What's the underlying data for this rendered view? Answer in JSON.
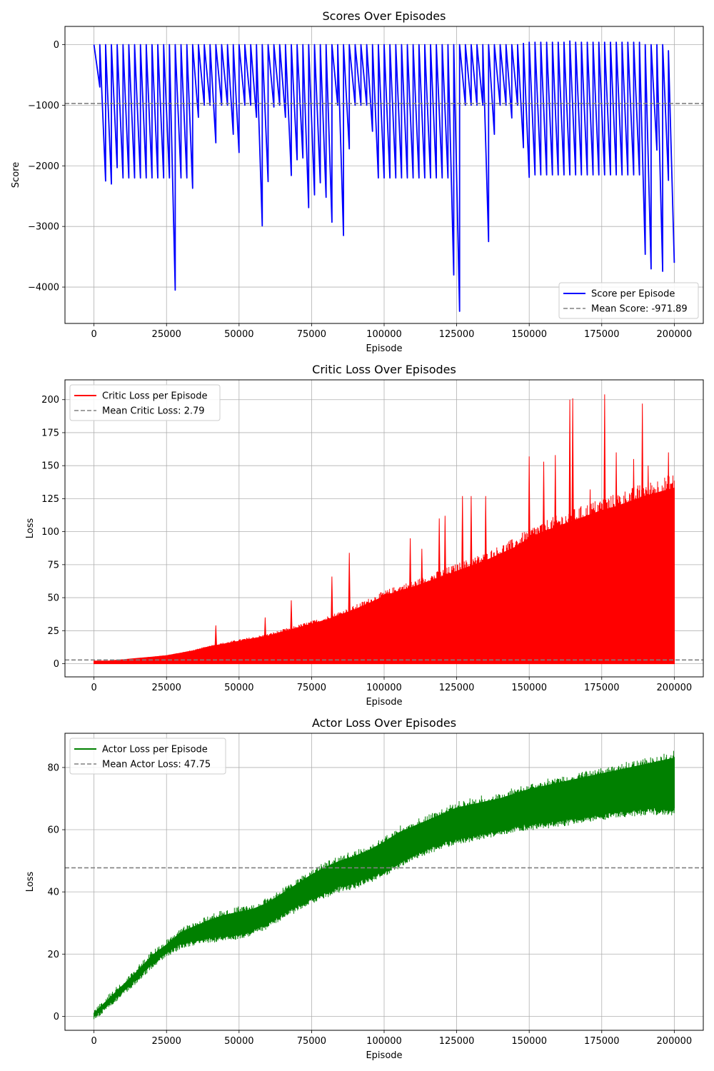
{
  "chart_data": [
    {
      "type": "line",
      "title": "Scores Over Episodes",
      "xlabel": "Episode",
      "ylabel": "Score",
      "xlim": [
        -10000,
        210000
      ],
      "ylim": [
        -4600,
        300
      ],
      "xticks": [
        0,
        25000,
        50000,
        75000,
        100000,
        125000,
        150000,
        175000,
        200000
      ],
      "yticks": [
        -4000,
        -3000,
        -2000,
        -1000,
        0
      ],
      "grid": true,
      "legend_position": "lower-right",
      "series": [
        {
          "name": "Score per Episode",
          "color": "#0000ff",
          "style": "sawtooth",
          "x_start": 0,
          "x_end": 200000,
          "period": 2000,
          "peak_values": [
            0,
            0,
            0,
            0,
            0,
            0,
            0,
            0,
            0,
            0,
            0,
            0,
            0,
            0,
            0,
            0,
            0,
            0,
            0,
            0,
            0,
            0,
            0,
            0,
            0,
            0,
            0,
            0,
            0,
            0,
            0,
            0,
            0,
            0,
            0,
            0,
            0,
            0,
            0,
            0,
            0,
            0,
            0,
            0,
            0,
            0,
            0,
            0,
            0,
            0,
            0,
            0,
            0,
            0,
            0,
            0,
            0,
            0,
            0,
            0,
            0,
            0,
            0,
            0,
            0,
            0,
            0,
            0,
            0,
            0,
            0,
            0,
            0,
            0,
            20,
            40,
            40,
            40,
            40,
            40,
            40,
            40,
            60,
            40,
            40,
            40,
            40,
            40,
            40,
            40,
            40,
            40,
            40,
            40,
            40,
            0,
            0,
            0,
            0,
            -100
          ],
          "trough_values": [
            -700,
            -2250,
            -2300,
            -2030,
            -2200,
            -2200,
            -2200,
            -2200,
            -2200,
            -2200,
            -2200,
            -2200,
            -2200,
            -4050,
            -2200,
            -2200,
            -2370,
            -1200,
            -1000,
            -1000,
            -1620,
            -1000,
            -1000,
            -1480,
            -1780,
            -1000,
            -1000,
            -1200,
            -2990,
            -2260,
            -1030,
            -1000,
            -1200,
            -2160,
            -1900,
            -1870,
            -2690,
            -2480,
            -2280,
            -2520,
            -2930,
            -1000,
            -3150,
            -1720,
            -1000,
            -1000,
            -1000,
            -1430,
            -2200,
            -2200,
            -2200,
            -2200,
            -2200,
            -2200,
            -2200,
            -2200,
            -2200,
            -2200,
            -2200,
            -2200,
            -2200,
            -3800,
            -4400,
            -1000,
            -1000,
            -1000,
            -1000,
            -3250,
            -1480,
            -1000,
            -1000,
            -1210,
            -1000,
            -1700,
            -2190,
            -2150,
            -2150,
            -2150,
            -2150,
            -2150,
            -2150,
            -2150,
            -2150,
            -2150,
            -2150,
            -2150,
            -2150,
            -2150,
            -2150,
            -2150,
            -2150,
            -2150,
            -2150,
            -2150,
            -3460,
            -3700,
            -1740,
            -3740,
            -2240,
            -3600
          ]
        },
        {
          "name": "Mean Score: -971.89",
          "color": "#808080",
          "style": "hline",
          "value": -971.89
        }
      ]
    },
    {
      "type": "line",
      "title": "Critic Loss Over Episodes",
      "xlabel": "Episode",
      "ylabel": "Loss",
      "xlim": [
        -10000,
        210000
      ],
      "ylim": [
        -10,
        215
      ],
      "xticks": [
        0,
        25000,
        50000,
        75000,
        100000,
        125000,
        150000,
        175000,
        200000
      ],
      "yticks": [
        0,
        25,
        50,
        75,
        100,
        125,
        150,
        175,
        200
      ],
      "grid": true,
      "legend_position": "upper-left",
      "series": [
        {
          "name": "Critic Loss per Episode",
          "color": "#ff0000",
          "style": "band",
          "x": [
            0,
            5000,
            10000,
            15000,
            20000,
            25000,
            30000,
            35000,
            40000,
            45000,
            50000,
            55000,
            60000,
            65000,
            70000,
            75000,
            80000,
            85000,
            90000,
            95000,
            100000,
            105000,
            110000,
            115000,
            120000,
            125000,
            130000,
            135000,
            140000,
            145000,
            150000,
            155000,
            160000,
            165000,
            170000,
            175000,
            180000,
            185000,
            190000,
            195000,
            200000
          ],
          "lower": [
            0,
            0,
            0,
            0,
            0,
            0,
            0,
            0,
            0,
            0,
            0,
            0,
            0,
            0,
            0,
            0,
            0,
            0,
            0,
            0,
            0,
            0,
            0,
            0,
            0,
            0,
            0,
            0,
            0,
            0,
            0,
            0,
            0,
            0,
            0,
            0,
            0,
            0,
            0,
            0,
            0
          ],
          "upper": [
            2,
            2,
            3,
            4,
            5,
            6,
            8,
            10,
            13,
            15,
            17,
            19,
            21,
            24,
            27,
            30,
            33,
            37,
            41,
            46,
            51,
            55,
            58,
            62,
            66,
            70,
            74,
            78,
            83,
            88,
            95,
            100,
            104,
            108,
            112,
            116,
            119,
            123,
            127,
            130,
            133
          ],
          "spikes": [
            {
              "x": 42000,
              "y": 29
            },
            {
              "x": 59000,
              "y": 35
            },
            {
              "x": 68000,
              "y": 48
            },
            {
              "x": 82000,
              "y": 66
            },
            {
              "x": 88000,
              "y": 84
            },
            {
              "x": 109000,
              "y": 95
            },
            {
              "x": 113000,
              "y": 87
            },
            {
              "x": 119000,
              "y": 110
            },
            {
              "x": 121000,
              "y": 112
            },
            {
              "x": 127000,
              "y": 127
            },
            {
              "x": 130000,
              "y": 127
            },
            {
              "x": 135000,
              "y": 127
            },
            {
              "x": 150000,
              "y": 157
            },
            {
              "x": 155000,
              "y": 153
            },
            {
              "x": 159000,
              "y": 158
            },
            {
              "x": 164000,
              "y": 200
            },
            {
              "x": 165000,
              "y": 201
            },
            {
              "x": 171000,
              "y": 132
            },
            {
              "x": 176000,
              "y": 204
            },
            {
              "x": 180000,
              "y": 160
            },
            {
              "x": 186000,
              "y": 155
            },
            {
              "x": 189000,
              "y": 197
            },
            {
              "x": 191000,
              "y": 150
            },
            {
              "x": 198000,
              "y": 160
            }
          ]
        },
        {
          "name": "Mean Critic Loss: 2.79",
          "color": "#808080",
          "style": "hline",
          "value": 2.79
        }
      ]
    },
    {
      "type": "line",
      "title": "Actor Loss Over Episodes",
      "xlabel": "Episode",
      "ylabel": "Loss",
      "xlim": [
        -10000,
        210000
      ],
      "ylim": [
        -4.5,
        91
      ],
      "xticks": [
        0,
        25000,
        50000,
        75000,
        100000,
        125000,
        150000,
        175000,
        200000
      ],
      "yticks": [
        0,
        20,
        40,
        60,
        80
      ],
      "grid": true,
      "legend_position": "upper-left",
      "series": [
        {
          "name": "Actor Loss per Episode",
          "color": "#008000",
          "style": "band",
          "x": [
            0,
            5000,
            10000,
            15000,
            20000,
            25000,
            30000,
            35000,
            40000,
            45000,
            50000,
            55000,
            60000,
            65000,
            70000,
            75000,
            80000,
            85000,
            90000,
            95000,
            100000,
            105000,
            110000,
            115000,
            120000,
            125000,
            130000,
            135000,
            140000,
            145000,
            150000,
            155000,
            160000,
            165000,
            170000,
            175000,
            180000,
            185000,
            190000,
            195000,
            200000
          ],
          "lower": [
            0,
            4,
            8,
            12.5,
            17,
            20.5,
            23.5,
            24.5,
            25.5,
            26,
            26.5,
            28,
            30,
            33,
            35.5,
            38,
            40,
            42,
            43,
            45,
            47,
            49.5,
            52,
            54,
            56,
            57,
            58,
            59,
            60,
            61,
            62,
            62.5,
            63,
            64,
            64.5,
            65,
            66,
            66.5,
            67,
            67,
            67
          ],
          "upper": [
            1,
            5.5,
            10,
            14.5,
            19.5,
            23,
            27,
            29,
            31,
            32.5,
            33.5,
            34.5,
            36.5,
            39.5,
            42.5,
            45.5,
            48,
            50,
            51.5,
            53.5,
            56,
            59,
            61,
            63,
            65,
            67,
            68,
            69,
            70,
            71.5,
            73,
            74,
            75,
            76,
            77,
            78,
            79,
            80,
            81,
            82,
            83
          ]
        },
        {
          "name": "Mean Actor Loss: 47.75",
          "color": "#808080",
          "style": "hline",
          "value": 47.75
        }
      ]
    }
  ]
}
